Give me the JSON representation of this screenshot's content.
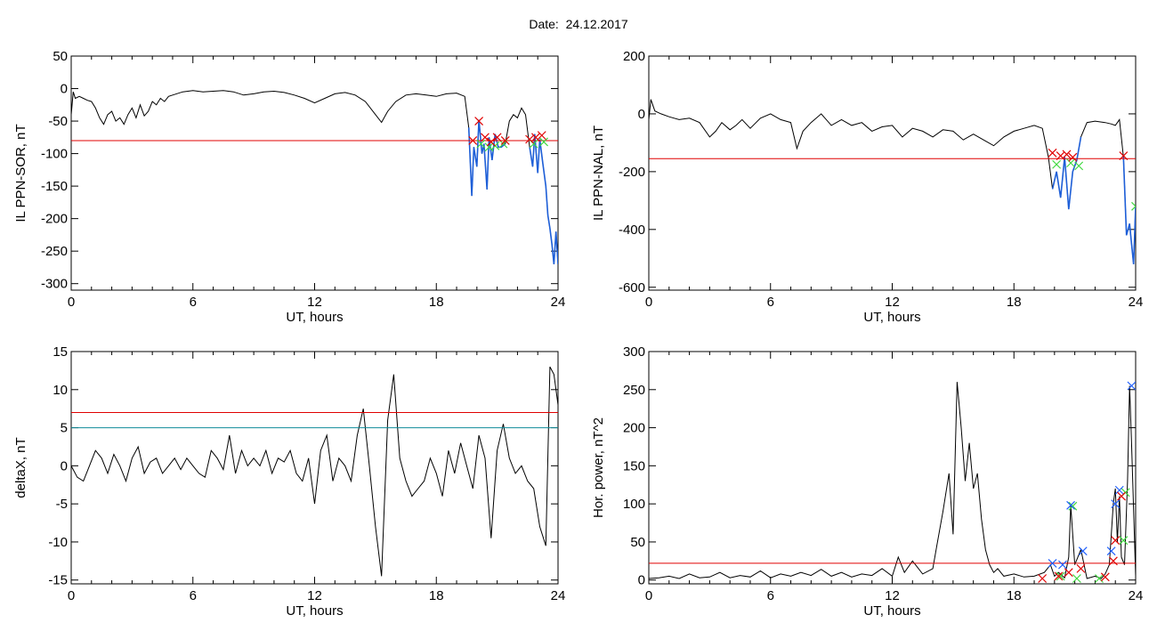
{
  "figure": {
    "date_label": "Date:",
    "date_value": "24.12.2017"
  },
  "colors": {
    "data_line": "#000000",
    "threshold_red": "#e00000",
    "threshold_teal": "#0f8c9a",
    "highlight_blue": "#1e5fd8",
    "marker_red": "#e00000",
    "marker_green": "#3fd83f",
    "marker_blue": "#2060ff"
  },
  "chart_data": [
    {
      "type": "line",
      "ylabel": "IL PPN-SOR, nT",
      "xlabel": "UT, hours",
      "xlim": [
        0,
        24
      ],
      "ylim": [
        -310,
        50
      ],
      "xticks": [
        0,
        6,
        12,
        18,
        24
      ],
      "yticks": [
        -300,
        -250,
        -200,
        -150,
        -100,
        -50,
        0,
        50
      ],
      "threshold_red": -80,
      "highlight_ranges": [
        [
          19.6,
          21.4
        ],
        [
          22.6,
          24
        ]
      ],
      "series": [
        {
          "x": [
            0,
            0.1,
            0.2,
            0.4,
            0.6,
            0.8,
            1.0,
            1.2,
            1.4,
            1.6,
            1.8,
            2.0,
            2.2,
            2.4,
            2.6,
            2.8,
            3.0,
            3.2,
            3.4,
            3.6,
            3.8,
            4.0,
            4.2,
            4.4,
            4.6,
            4.8,
            5.0,
            5.5,
            6.0,
            6.5,
            7.0,
            7.5,
            8.0,
            8.5,
            9.0,
            9.5,
            10.0,
            10.5,
            11.0,
            11.5,
            12.0,
            12.5,
            13.0,
            13.5,
            14.0,
            14.5,
            15.0,
            15.3,
            15.6,
            16.0,
            16.5,
            17.0,
            17.5,
            18.0,
            18.5,
            19.0,
            19.4,
            19.6,
            19.75,
            19.85,
            20.0,
            20.1,
            20.25,
            20.35,
            20.5,
            20.6,
            20.75,
            20.9,
            21.05,
            21.2,
            21.4,
            21.6,
            21.8,
            22.0,
            22.2,
            22.4,
            22.6,
            22.75,
            22.85,
            23.0,
            23.1,
            23.25,
            23.4,
            23.5,
            23.6,
            23.7,
            23.8,
            23.9,
            24.0
          ],
          "y": [
            -40,
            -5,
            -15,
            -12,
            -15,
            -18,
            -20,
            -30,
            -45,
            -55,
            -40,
            -35,
            -50,
            -45,
            -55,
            -40,
            -30,
            -45,
            -25,
            -42,
            -35,
            -20,
            -25,
            -15,
            -20,
            -12,
            -10,
            -5,
            -3,
            -5,
            -4,
            -3,
            -5,
            -10,
            -8,
            -5,
            -4,
            -6,
            -10,
            -15,
            -22,
            -15,
            -8,
            -6,
            -10,
            -20,
            -40,
            -52,
            -35,
            -20,
            -10,
            -8,
            -10,
            -12,
            -8,
            -7,
            -12,
            -60,
            -165,
            -90,
            -120,
            -48,
            -100,
            -85,
            -155,
            -75,
            -110,
            -70,
            -90,
            -90,
            -85,
            -50,
            -40,
            -45,
            -30,
            -40,
            -90,
            -120,
            -70,
            -130,
            -78,
            -115,
            -150,
            -195,
            -215,
            -240,
            -270,
            -220,
            -270
          ]
        }
      ],
      "markers_red": [
        [
          19.8,
          -80
        ],
        [
          20.1,
          -50
        ],
        [
          20.4,
          -75
        ],
        [
          20.7,
          -82
        ],
        [
          21.0,
          -75
        ],
        [
          21.4,
          -80
        ],
        [
          22.6,
          -78
        ],
        [
          22.9,
          -75
        ],
        [
          23.2,
          -72
        ]
      ],
      "markers_green": [
        [
          20.2,
          -85
        ],
        [
          20.6,
          -90
        ],
        [
          20.9,
          -88
        ],
        [
          21.3,
          -85
        ],
        [
          22.8,
          -85
        ],
        [
          23.3,
          -82
        ]
      ]
    },
    {
      "type": "line",
      "ylabel": "IL PPN-NAL, nT",
      "xlabel": "UT, hours",
      "xlim": [
        0,
        24
      ],
      "ylim": [
        -610,
        200
      ],
      "xticks": [
        0,
        6,
        12,
        18,
        24
      ],
      "yticks": [
        -600,
        -400,
        -200,
        0,
        200
      ],
      "threshold_red": -155,
      "highlight_ranges": [
        [
          19.8,
          21.4
        ],
        [
          23.3,
          24
        ]
      ],
      "series": [
        {
          "x": [
            0,
            0.1,
            0.3,
            0.6,
            1.0,
            1.5,
            2.0,
            2.5,
            3.0,
            3.3,
            3.6,
            4.0,
            4.3,
            4.6,
            5.0,
            5.5,
            6.0,
            6.5,
            7.0,
            7.3,
            7.6,
            8.0,
            8.5,
            9.0,
            9.5,
            10.0,
            10.5,
            11.0,
            11.5,
            12.0,
            12.5,
            13.0,
            13.5,
            14.0,
            14.5,
            15.0,
            15.5,
            16.0,
            16.5,
            17.0,
            17.5,
            18.0,
            18.5,
            19.0,
            19.4,
            19.7,
            19.9,
            20.1,
            20.3,
            20.5,
            20.7,
            20.9,
            21.1,
            21.3,
            21.6,
            22.0,
            22.5,
            22.8,
            23.0,
            23.2,
            23.4,
            23.55,
            23.7,
            23.8,
            23.9,
            24.0
          ],
          "y": [
            -20,
            50,
            10,
            0,
            -10,
            -20,
            -15,
            -30,
            -80,
            -60,
            -30,
            -55,
            -40,
            -20,
            -50,
            -15,
            0,
            -20,
            -30,
            -120,
            -60,
            -30,
            0,
            -40,
            -20,
            -40,
            -30,
            -60,
            -45,
            -40,
            -80,
            -50,
            -60,
            -80,
            -55,
            -60,
            -90,
            -70,
            -90,
            -110,
            -80,
            -60,
            -50,
            -40,
            -50,
            -150,
            -260,
            -200,
            -290,
            -150,
            -330,
            -200,
            -160,
            -80,
            -30,
            -25,
            -30,
            -35,
            -40,
            -20,
            -150,
            -420,
            -380,
            -450,
            -520,
            -320
          ]
        }
      ],
      "markers_red": [
        [
          19.9,
          -135
        ],
        [
          20.3,
          -145
        ],
        [
          20.6,
          -140
        ],
        [
          20.9,
          -150
        ],
        [
          23.4,
          -145
        ]
      ],
      "markers_green": [
        [
          20.1,
          -175
        ],
        [
          20.8,
          -170
        ],
        [
          21.2,
          -180
        ],
        [
          24.0,
          -320
        ]
      ]
    },
    {
      "type": "line",
      "ylabel": "deltaX, nT",
      "xlabel": "UT, hours",
      "xlim": [
        0,
        24
      ],
      "ylim": [
        -15.5,
        15
      ],
      "xticks": [
        0,
        6,
        12,
        18,
        24
      ],
      "yticks": [
        -15,
        -10,
        -5,
        0,
        5,
        10,
        15
      ],
      "threshold_red": 7,
      "threshold_teal": 5,
      "series": [
        {
          "x": [
            0,
            0.3,
            0.6,
            0.9,
            1.2,
            1.5,
            1.8,
            2.1,
            2.4,
            2.7,
            3.0,
            3.3,
            3.6,
            3.9,
            4.2,
            4.5,
            4.8,
            5.1,
            5.4,
            5.7,
            6.0,
            6.3,
            6.6,
            6.9,
            7.2,
            7.5,
            7.8,
            8.1,
            8.4,
            8.7,
            9.0,
            9.3,
            9.6,
            9.9,
            10.2,
            10.5,
            10.8,
            11.1,
            11.4,
            11.7,
            12.0,
            12.3,
            12.6,
            12.9,
            13.2,
            13.5,
            13.8,
            14.1,
            14.4,
            14.7,
            15.0,
            15.3,
            15.6,
            15.9,
            16.2,
            16.5,
            16.8,
            17.1,
            17.4,
            17.7,
            18.0,
            18.3,
            18.6,
            18.9,
            19.2,
            19.5,
            19.8,
            20.1,
            20.4,
            20.7,
            21.0,
            21.3,
            21.6,
            21.9,
            22.2,
            22.5,
            22.8,
            23.1,
            23.4,
            23.6,
            23.8,
            24.0
          ],
          "y": [
            0,
            -1.5,
            -2,
            0,
            2,
            1,
            -1,
            1.5,
            0,
            -2,
            1,
            2.5,
            -1,
            0.5,
            1,
            -1,
            0,
            1,
            -0.5,
            1,
            0,
            -1,
            -1.5,
            2,
            1,
            -0.5,
            4,
            -1,
            2,
            0,
            1,
            0,
            2,
            -1,
            1,
            0.5,
            2,
            -1,
            -2,
            1,
            -5,
            2,
            4,
            -2,
            1,
            0,
            -2,
            4,
            7.5,
            0,
            -8,
            -14.5,
            6,
            12,
            1,
            -2,
            -4,
            -3,
            -2,
            1,
            -1,
            -4,
            2,
            -1,
            3,
            0,
            -3,
            4,
            1,
            -9.5,
            2,
            5.5,
            1,
            -1,
            0,
            -2,
            -3,
            -8,
            -10.5,
            13,
            12,
            8
          ]
        }
      ]
    },
    {
      "type": "line",
      "ylabel": "Hor. power, nT^2",
      "xlabel": "UT, hours",
      "xlim": [
        0,
        24
      ],
      "ylim": [
        -5,
        300
      ],
      "xticks": [
        0,
        6,
        12,
        18,
        24
      ],
      "yticks": [
        0,
        50,
        100,
        150,
        200,
        250,
        300
      ],
      "threshold_red": 22,
      "series": [
        {
          "x": [
            0,
            0.5,
            1.0,
            1.5,
            2.0,
            2.5,
            3.0,
            3.5,
            4.0,
            4.5,
            5.0,
            5.5,
            6.0,
            6.5,
            7.0,
            7.5,
            8.0,
            8.5,
            9.0,
            9.5,
            10.0,
            10.5,
            11.0,
            11.5,
            12.0,
            12.3,
            12.6,
            13.0,
            13.5,
            14.0,
            14.2,
            14.5,
            14.8,
            15.0,
            15.2,
            15.4,
            15.6,
            15.8,
            16.0,
            16.2,
            16.4,
            16.6,
            16.8,
            17.0,
            17.2,
            17.5,
            18.0,
            18.5,
            19.0,
            19.5,
            19.8,
            20.0,
            20.2,
            20.5,
            20.7,
            20.8,
            21.0,
            21.3,
            21.6,
            22.0,
            22.3,
            22.5,
            22.7,
            22.9,
            23.0,
            23.1,
            23.2,
            23.3,
            23.45,
            23.6,
            23.7,
            23.8,
            24.0
          ],
          "y": [
            2,
            3,
            5,
            2,
            8,
            3,
            4,
            10,
            3,
            6,
            4,
            12,
            3,
            8,
            5,
            10,
            6,
            14,
            5,
            10,
            4,
            8,
            6,
            15,
            5,
            30,
            10,
            25,
            8,
            15,
            45,
            90,
            140,
            60,
            260,
            200,
            130,
            180,
            120,
            140,
            80,
            40,
            20,
            10,
            15,
            5,
            8,
            4,
            5,
            10,
            20,
            5,
            10,
            3,
            30,
            98,
            20,
            40,
            2,
            5,
            2,
            8,
            20,
            100,
            120,
            50,
            110,
            30,
            20,
            130,
            255,
            180,
            5
          ]
        }
      ],
      "markers_red": [
        [
          19.4,
          2
        ],
        [
          20.2,
          5
        ],
        [
          20.7,
          10
        ],
        [
          21.3,
          15
        ],
        [
          22.5,
          4
        ],
        [
          22.9,
          25
        ],
        [
          23.0,
          52
        ],
        [
          23.3,
          110
        ]
      ],
      "markers_blue": [
        [
          19.9,
          22
        ],
        [
          20.4,
          20
        ],
        [
          20.8,
          98
        ],
        [
          21.4,
          38
        ],
        [
          22.8,
          38
        ],
        [
          23.0,
          100
        ],
        [
          23.2,
          118
        ],
        [
          23.8,
          255
        ]
      ],
      "markers_green": [
        [
          20.3,
          5
        ],
        [
          20.9,
          97
        ],
        [
          21.1,
          2
        ],
        [
          22.2,
          2
        ],
        [
          23.4,
          52
        ],
        [
          23.5,
          115
        ]
      ]
    }
  ]
}
